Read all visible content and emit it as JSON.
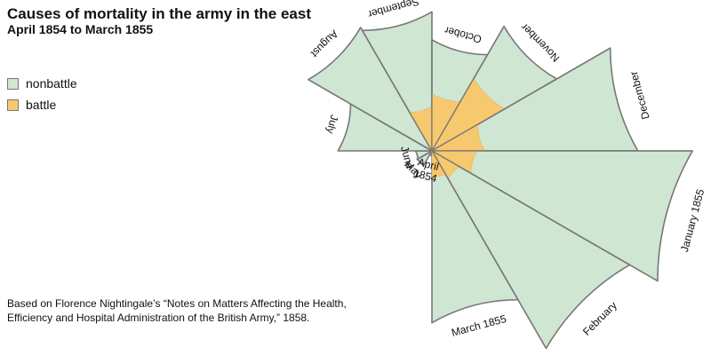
{
  "header": {
    "title": "Causes of mortality in the army in the east",
    "subtitle": "April 1854 to March 1855"
  },
  "legend": {
    "items": [
      {
        "label": "nonbattle",
        "color": "#cfe6d3"
      },
      {
        "label": "battle",
        "color": "#f7c96e"
      }
    ]
  },
  "caption": {
    "line1": "Based on Florence Nightingale’s “Notes on Matters Affecting the Health,",
    "line2": "Efficiency and Hospital Administration of the British Army,” 1858."
  },
  "colors": {
    "nonbattle": "#cfe6d3",
    "battle": "#f7c96e",
    "stroke": "#777777"
  },
  "chart_data": {
    "type": "polar area",
    "scale": "radius proportional to square root of value",
    "order": "clockwise from the bottom (12 wedges of 30°)",
    "series": [
      {
        "name": "nonbattle",
        "values": [
          1,
          12,
          11,
          359,
          828,
          788,
          503,
          844,
          1725,
          2761,
          2120,
          1205
        ]
      },
      {
        "name": "battle",
        "values": [
          0,
          0,
          0,
          0,
          1,
          81,
          132,
          287,
          114,
          83,
          42,
          32
        ]
      }
    ],
    "months": [
      {
        "lines": [
          "April",
          "1854"
        ]
      },
      {
        "lines": [
          "May"
        ]
      },
      {
        "lines": [
          "June"
        ]
      },
      {
        "lines": [
          "July"
        ]
      },
      {
        "lines": [
          "August"
        ]
      },
      {
        "lines": [
          "September"
        ]
      },
      {
        "lines": [
          "October"
        ]
      },
      {
        "lines": [
          "November"
        ]
      },
      {
        "lines": [
          "December"
        ]
      },
      {
        "lines": [
          "January 1855"
        ]
      },
      {
        "lines": [
          "February"
        ]
      },
      {
        "lines": [
          "March 1855"
        ]
      }
    ]
  }
}
